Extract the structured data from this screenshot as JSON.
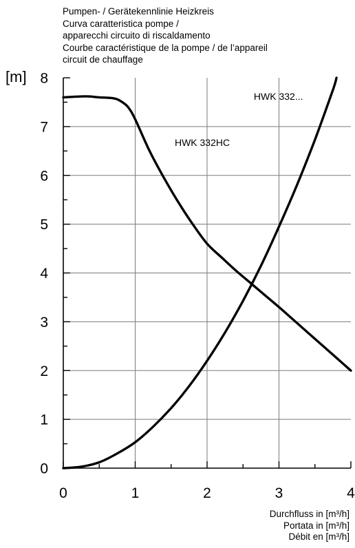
{
  "chart_data": {
    "type": "line",
    "title_lines": [
      "Pumpen- / Gerätekennlinie Heizkreis",
      "Curva caratteristica pompe /",
      "apparecchi circuito di riscaldamento",
      "Courbe caractéristique de la pompe / de l’appareil",
      "circuit de chauffage"
    ],
    "ylabel": "[m]",
    "xlabel_lines": [
      "Durchfluss in [m³/h]",
      "Portata in [m³/h]",
      "Débit en [m³/h]"
    ],
    "xlim": [
      0,
      4
    ],
    "ylim": [
      0,
      8
    ],
    "x_ticks": [
      "0",
      "1",
      "2",
      "3",
      "4"
    ],
    "y_ticks": [
      "0",
      "1",
      "2",
      "3",
      "4",
      "5",
      "6",
      "7",
      "8"
    ],
    "grid": true,
    "series": [
      {
        "name": "HWK 332HC",
        "label_at": [
          1.55,
          6.6
        ],
        "points": [
          [
            0,
            7.6
          ],
          [
            0.3,
            7.62
          ],
          [
            0.5,
            7.6
          ],
          [
            0.7,
            7.58
          ],
          [
            0.8,
            7.52
          ],
          [
            0.9,
            7.4
          ],
          [
            1.0,
            7.15
          ],
          [
            1.2,
            6.5
          ],
          [
            1.4,
            5.95
          ],
          [
            1.6,
            5.45
          ],
          [
            1.8,
            5.0
          ],
          [
            2.0,
            4.6
          ],
          [
            2.2,
            4.32
          ],
          [
            2.4,
            4.05
          ],
          [
            2.6,
            3.8
          ],
          [
            2.8,
            3.55
          ],
          [
            3.0,
            3.3
          ],
          [
            3.2,
            3.04
          ],
          [
            3.4,
            2.78
          ],
          [
            3.6,
            2.52
          ],
          [
            3.8,
            2.26
          ],
          [
            4.0,
            2.0
          ]
        ]
      },
      {
        "name": "HWK 332...",
        "label_at": [
          2.65,
          7.55
        ],
        "points": [
          [
            0,
            0
          ],
          [
            0.25,
            0.03
          ],
          [
            0.5,
            0.12
          ],
          [
            0.75,
            0.3
          ],
          [
            1.0,
            0.53
          ],
          [
            1.25,
            0.85
          ],
          [
            1.5,
            1.23
          ],
          [
            1.75,
            1.68
          ],
          [
            2.0,
            2.2
          ],
          [
            2.25,
            2.78
          ],
          [
            2.5,
            3.43
          ],
          [
            2.75,
            4.15
          ],
          [
            3.0,
            4.95
          ],
          [
            3.25,
            5.8
          ],
          [
            3.5,
            6.73
          ],
          [
            3.75,
            7.75
          ],
          [
            3.8,
            8.0
          ]
        ]
      }
    ]
  }
}
